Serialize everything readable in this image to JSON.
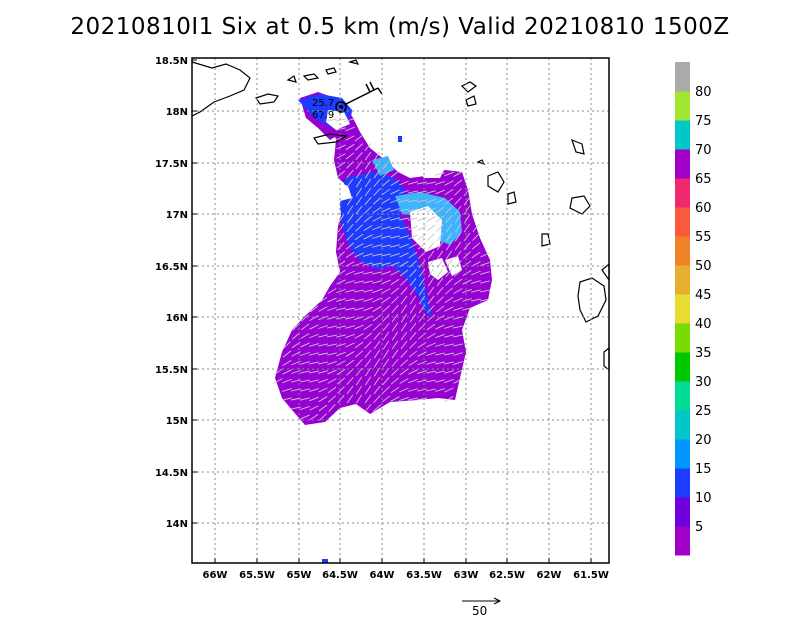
{
  "title": "20210810I1 Six at 0.5 km (m/s) Valid 20210810 1500Z",
  "map": {
    "lon_ticks": [
      "66W",
      "65.5W",
      "65W",
      "64.5W",
      "64W",
      "63.5W",
      "63W",
      "62.5W",
      "62W",
      "61.5W"
    ],
    "lat_ticks": [
      "18.5N",
      "18N",
      "17.5N",
      "17N",
      "16.5N",
      "16N",
      "15.5N",
      "15N",
      "14.5N",
      "14N"
    ],
    "grid": "dotted",
    "storm_label_1": "25.7",
    "storm_label_2": "67.9"
  },
  "colorbar": {
    "labels": [
      "5",
      "10",
      "15",
      "20",
      "25",
      "30",
      "35",
      "40",
      "45",
      "50",
      "55",
      "60",
      "65",
      "70",
      "75",
      "80"
    ],
    "colors": [
      "#a000c8",
      "#6e00dc",
      "#1e3cff",
      "#0096ff",
      "#00c8c8",
      "#00dc96",
      "#00c800",
      "#78dc00",
      "#e6dc32",
      "#e6af2d",
      "#f08228",
      "#fa5a3c",
      "#f0286e",
      "#a000c8",
      "#00c8c8",
      "#a0e632",
      "#aaaaaa"
    ]
  },
  "reference_vector": {
    "label": "50"
  },
  "colors": {
    "field_main": "#9600d2",
    "field_wind": "#1e3cff",
    "field_light": "#3cb4ff",
    "coast": "#000000"
  }
}
